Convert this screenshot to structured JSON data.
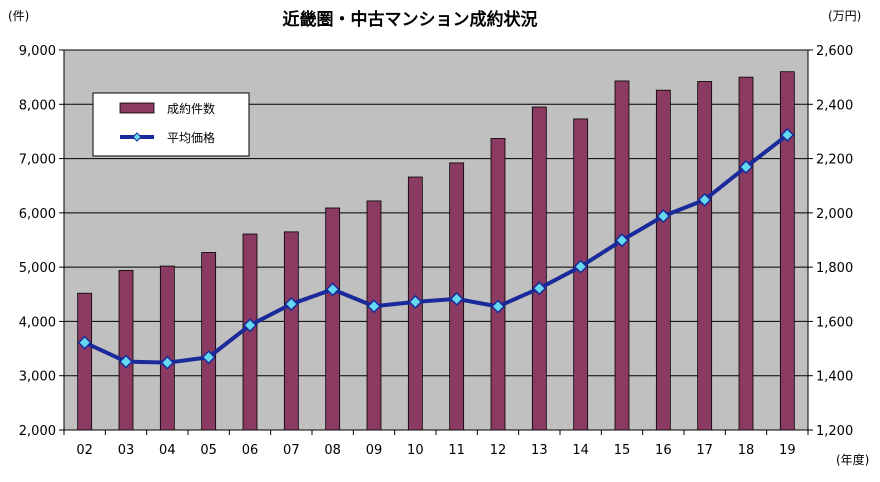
{
  "chart_data": {
    "type": "bar-line",
    "title": "近畿圏・中古マンション成約状況",
    "y_left_unit": "(件)",
    "y_right_unit": "(万円)",
    "x_unit": "(年度)",
    "categories": [
      "02",
      "03",
      "04",
      "05",
      "06",
      "07",
      "08",
      "09",
      "10",
      "11",
      "12",
      "13",
      "14",
      "15",
      "16",
      "17",
      "18",
      "19"
    ],
    "y_left_lim": [
      2000,
      9000
    ],
    "y_left_ticks": [
      "2,000",
      "3,000",
      "4,000",
      "5,000",
      "6,000",
      "7,000",
      "8,000",
      "9,000"
    ],
    "y_right_lim": [
      1200,
      2600
    ],
    "y_right_ticks": [
      "1,200",
      "1,400",
      "1,600",
      "1,800",
      "2,000",
      "2,200",
      "2,400",
      "2,600"
    ],
    "grid": true,
    "legend_position": "top-left",
    "series": [
      {
        "name": "成約件数",
        "type": "bar",
        "axis": "left",
        "color": "#8b3a62",
        "values": [
          4520,
          4940,
          5020,
          5270,
          5610,
          5650,
          6090,
          6220,
          6660,
          6920,
          7370,
          7950,
          7730,
          8430,
          8260,
          8420,
          8500,
          8600
        ]
      },
      {
        "name": "平均価格",
        "type": "line",
        "axis": "right",
        "color": "#1a2a9a",
        "marker_color": "#66d8f0",
        "values": [
          1522,
          1452,
          1448,
          1468,
          1586,
          1664,
          1718,
          1656,
          1672,
          1683,
          1655,
          1722,
          1802,
          1899,
          1988,
          2048,
          2169,
          2287
        ]
      }
    ]
  }
}
